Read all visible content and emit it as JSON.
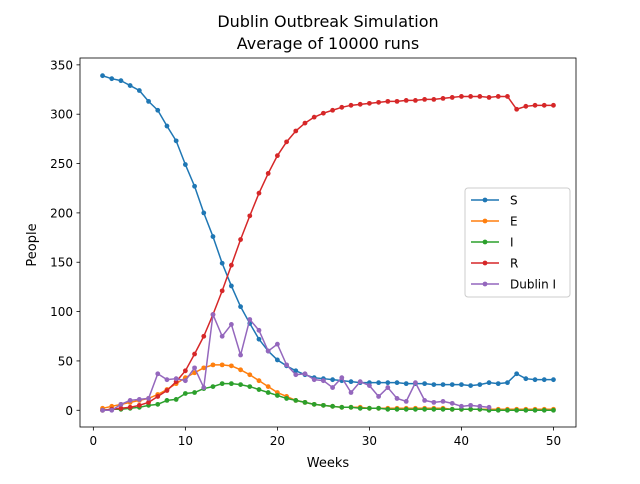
{
  "chart_data": {
    "type": "line",
    "title": "Dublin Outbreak Simulation",
    "subtitle": "Average of 10000 runs",
    "xlabel": "Weeks",
    "ylabel": "People",
    "xlim": [
      -1.45,
      52.45
    ],
    "ylim": [
      -16.95,
      356.95
    ],
    "xticks": [
      0,
      10,
      20,
      30,
      40,
      50
    ],
    "yticks": [
      0,
      50,
      100,
      150,
      200,
      250,
      300,
      350
    ],
    "grid": false,
    "legend_position": "right",
    "series": [
      {
        "name": "S",
        "color": "#1f77b4",
        "x": [
          1,
          2,
          3,
          4,
          5,
          6,
          7,
          8,
          9,
          10,
          11,
          12,
          13,
          14,
          15,
          16,
          17,
          18,
          19,
          20,
          21,
          22,
          23,
          24,
          25,
          26,
          27,
          28,
          29,
          30,
          31,
          32,
          33,
          34,
          35,
          36,
          37,
          38,
          39,
          40,
          41,
          42,
          43,
          44,
          45,
          46,
          47,
          48,
          49,
          50
        ],
        "values": [
          339,
          336,
          334,
          329,
          324,
          313,
          304,
          288,
          273,
          249,
          227,
          200,
          176,
          149,
          126,
          105,
          88,
          72,
          60,
          51,
          45,
          40,
          36,
          33,
          32,
          31,
          30,
          29,
          28,
          28,
          28,
          28,
          28,
          27,
          27,
          27,
          26,
          26,
          26,
          26,
          25,
          26,
          28,
          27,
          28,
          37,
          32,
          31,
          31,
          31
        ]
      },
      {
        "name": "E",
        "color": "#ff7f0e",
        "x": [
          1,
          2,
          3,
          4,
          5,
          6,
          7,
          8,
          9,
          10,
          11,
          12,
          13,
          14,
          15,
          16,
          17,
          18,
          19,
          20,
          21,
          22,
          23,
          24,
          25,
          26,
          27,
          28,
          29,
          30,
          31,
          32,
          33,
          34,
          35,
          36,
          37,
          38,
          39,
          40,
          41,
          42,
          43,
          44,
          45,
          46,
          47,
          48,
          49,
          50
        ],
        "values": [
          2,
          4,
          6,
          8,
          10,
          12,
          16,
          21,
          27,
          33,
          38,
          43,
          46,
          46,
          45,
          41,
          36,
          30,
          24,
          18,
          14,
          10,
          8,
          6,
          5,
          4,
          3,
          3,
          3,
          2,
          2,
          2,
          2,
          2,
          2,
          2,
          2,
          2,
          1,
          1,
          1,
          1,
          1,
          1,
          1,
          1,
          1,
          1,
          1,
          1
        ]
      },
      {
        "name": "I",
        "color": "#2ca02c",
        "x": [
          1,
          2,
          3,
          4,
          5,
          6,
          7,
          8,
          9,
          10,
          11,
          12,
          13,
          14,
          15,
          16,
          17,
          18,
          19,
          20,
          21,
          22,
          23,
          24,
          25,
          26,
          27,
          28,
          29,
          30,
          31,
          32,
          33,
          34,
          35,
          36,
          37,
          38,
          39,
          40,
          41,
          42,
          43,
          44,
          45,
          46,
          47,
          48,
          49,
          50
        ],
        "values": [
          0,
          1,
          1,
          2,
          3,
          5,
          6,
          10,
          11,
          17,
          18,
          22,
          24,
          27,
          27,
          26,
          24,
          21,
          18,
          15,
          12,
          10,
          8,
          6,
          5,
          4,
          3,
          3,
          2,
          2,
          2,
          1,
          1,
          1,
          1,
          1,
          1,
          1,
          1,
          1,
          1,
          1,
          0,
          0,
          0,
          0,
          0,
          0,
          0,
          0
        ]
      },
      {
        "name": "R",
        "color": "#d62728",
        "x": [
          1,
          2,
          3,
          4,
          5,
          6,
          7,
          8,
          9,
          10,
          11,
          12,
          13,
          14,
          15,
          16,
          17,
          18,
          19,
          20,
          21,
          22,
          23,
          24,
          25,
          26,
          27,
          28,
          29,
          30,
          31,
          32,
          33,
          34,
          35,
          36,
          37,
          38,
          39,
          40,
          41,
          42,
          43,
          44,
          45,
          46,
          47,
          48,
          49,
          50
        ],
        "values": [
          0,
          1,
          2,
          3,
          5,
          8,
          14,
          20,
          29,
          40,
          57,
          75,
          97,
          121,
          147,
          173,
          197,
          220,
          240,
          258,
          272,
          283,
          291,
          297,
          301,
          304,
          307,
          309,
          310,
          311,
          312,
          313,
          313,
          314,
          314,
          315,
          315,
          316,
          317,
          318,
          318,
          318,
          317,
          318,
          318,
          305,
          308,
          309,
          309,
          309
        ]
      },
      {
        "name": "Dublin I",
        "color": "#9467bd",
        "x": [
          1,
          2,
          3,
          4,
          5,
          6,
          7,
          8,
          9,
          10,
          11,
          12,
          13,
          14,
          15,
          16,
          17,
          18,
          19,
          20,
          21,
          22,
          23,
          24,
          25,
          26,
          27,
          28,
          29,
          30,
          31,
          32,
          33,
          34,
          35,
          36,
          37,
          38,
          39,
          40,
          41,
          42,
          43
        ],
        "values": [
          0,
          0,
          6,
          10,
          11,
          12,
          37,
          31,
          32,
          30,
          43,
          23,
          97,
          75,
          87,
          56,
          92,
          81,
          60,
          67,
          46,
          36,
          37,
          31,
          30,
          23,
          33,
          18,
          29,
          25,
          14,
          23,
          12,
          9,
          28,
          10,
          8,
          9,
          7,
          4,
          5,
          4,
          3
        ]
      }
    ]
  }
}
